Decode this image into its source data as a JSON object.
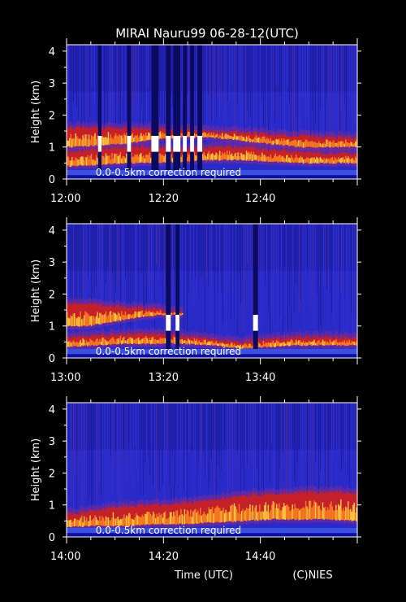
{
  "title": "MIRAI Nauru99 06-28-12(UTC)",
  "xlabel": "Time (UTC)",
  "credit": "(C)NIES",
  "chart_data": [
    {
      "type": "heatmap",
      "ylabel": "Height (km)",
      "yticks": [
        0,
        1,
        2,
        3,
        4
      ],
      "ylim": [
        0,
        4.2
      ],
      "xticks": [
        "12:00",
        "12:20",
        "12:40"
      ],
      "xlim_minutes": [
        0,
        60
      ],
      "annotation": "0.0-0.5km correction required",
      "layers": [
        {
          "x": [
            0,
            6,
            12,
            18,
            24,
            30,
            36,
            42,
            48,
            54,
            60
          ],
          "base": [
            0.4,
            0.45,
            0.5,
            0.5,
            0.55,
            0.6,
            0.6,
            0.55,
            0.5,
            0.5,
            0.5
          ],
          "top": [
            0.85,
            0.95,
            1.0,
            1.0,
            0.95,
            1.0,
            1.0,
            0.9,
            0.85,
            0.8,
            0.8
          ]
        },
        {
          "x": [
            0,
            6,
            12,
            18,
            24,
            30,
            36,
            42,
            48,
            54,
            60
          ],
          "base": [
            1.0,
            1.05,
            1.1,
            1.25,
            1.3,
            1.3,
            1.2,
            1.1,
            1.0,
            1.0,
            1.0
          ],
          "top": [
            1.6,
            1.6,
            1.6,
            1.55,
            1.55,
            1.5,
            1.45,
            1.4,
            1.35,
            1.3,
            1.3
          ]
        }
      ],
      "rain_columns_minutes": [
        [
          6.5,
          7.2
        ],
        [
          12.5,
          13.3
        ],
        [
          17.5,
          19.0
        ],
        [
          20.5,
          21.5
        ],
        [
          22.0,
          23.5
        ],
        [
          24.0,
          24.8
        ],
        [
          25.5,
          26.3
        ],
        [
          27.0,
          28.0
        ]
      ]
    },
    {
      "type": "heatmap",
      "ylabel": "Height (km)",
      "yticks": [
        0,
        1,
        2,
        3,
        4
      ],
      "ylim": [
        0,
        4.2
      ],
      "xticks": [
        "13:00",
        "13:20",
        "13:40"
      ],
      "xlim_minutes": [
        0,
        60
      ],
      "annotation": "0.0-0.5km correction required",
      "layers": [
        {
          "x": [
            0,
            6,
            12,
            18,
            24,
            30,
            36,
            42,
            48,
            54,
            60
          ],
          "base": [
            0.35,
            0.4,
            0.45,
            0.45,
            0.45,
            0.4,
            0.3,
            0.35,
            0.4,
            0.4,
            0.4
          ],
          "top": [
            0.65,
            0.7,
            0.75,
            0.75,
            0.7,
            0.6,
            0.5,
            0.6,
            0.65,
            0.65,
            0.65
          ]
        },
        {
          "x": [
            0,
            4,
            8,
            12,
            16,
            20,
            24
          ],
          "base": [
            1.0,
            1.0,
            1.1,
            1.2,
            1.3,
            1.35,
            1.35
          ],
          "top": [
            1.7,
            1.7,
            1.65,
            1.6,
            1.55,
            1.5,
            1.4
          ]
        }
      ],
      "rain_columns_minutes": [
        [
          20.5,
          21.5
        ],
        [
          22.5,
          23.3
        ],
        [
          38.5,
          39.5
        ]
      ]
    },
    {
      "type": "heatmap",
      "ylabel": "Height (km)",
      "yticks": [
        0,
        1,
        2,
        3,
        4
      ],
      "ylim": [
        0,
        4.2
      ],
      "xticks": [
        "14:00",
        "14:20",
        "14:40"
      ],
      "xlim_minutes": [
        0,
        60
      ],
      "annotation": "0.0-0.5km correction required",
      "layers": [
        {
          "x": [
            0,
            6,
            12,
            18,
            24,
            30,
            36,
            42,
            48,
            54,
            60
          ],
          "base": [
            0.3,
            0.35,
            0.35,
            0.4,
            0.4,
            0.45,
            0.5,
            0.55,
            0.55,
            0.55,
            0.5
          ],
          "top": [
            0.7,
            0.85,
            0.95,
            1.0,
            1.05,
            1.15,
            1.3,
            1.35,
            1.4,
            1.4,
            1.4
          ]
        }
      ],
      "rain_columns_minutes": []
    }
  ]
}
